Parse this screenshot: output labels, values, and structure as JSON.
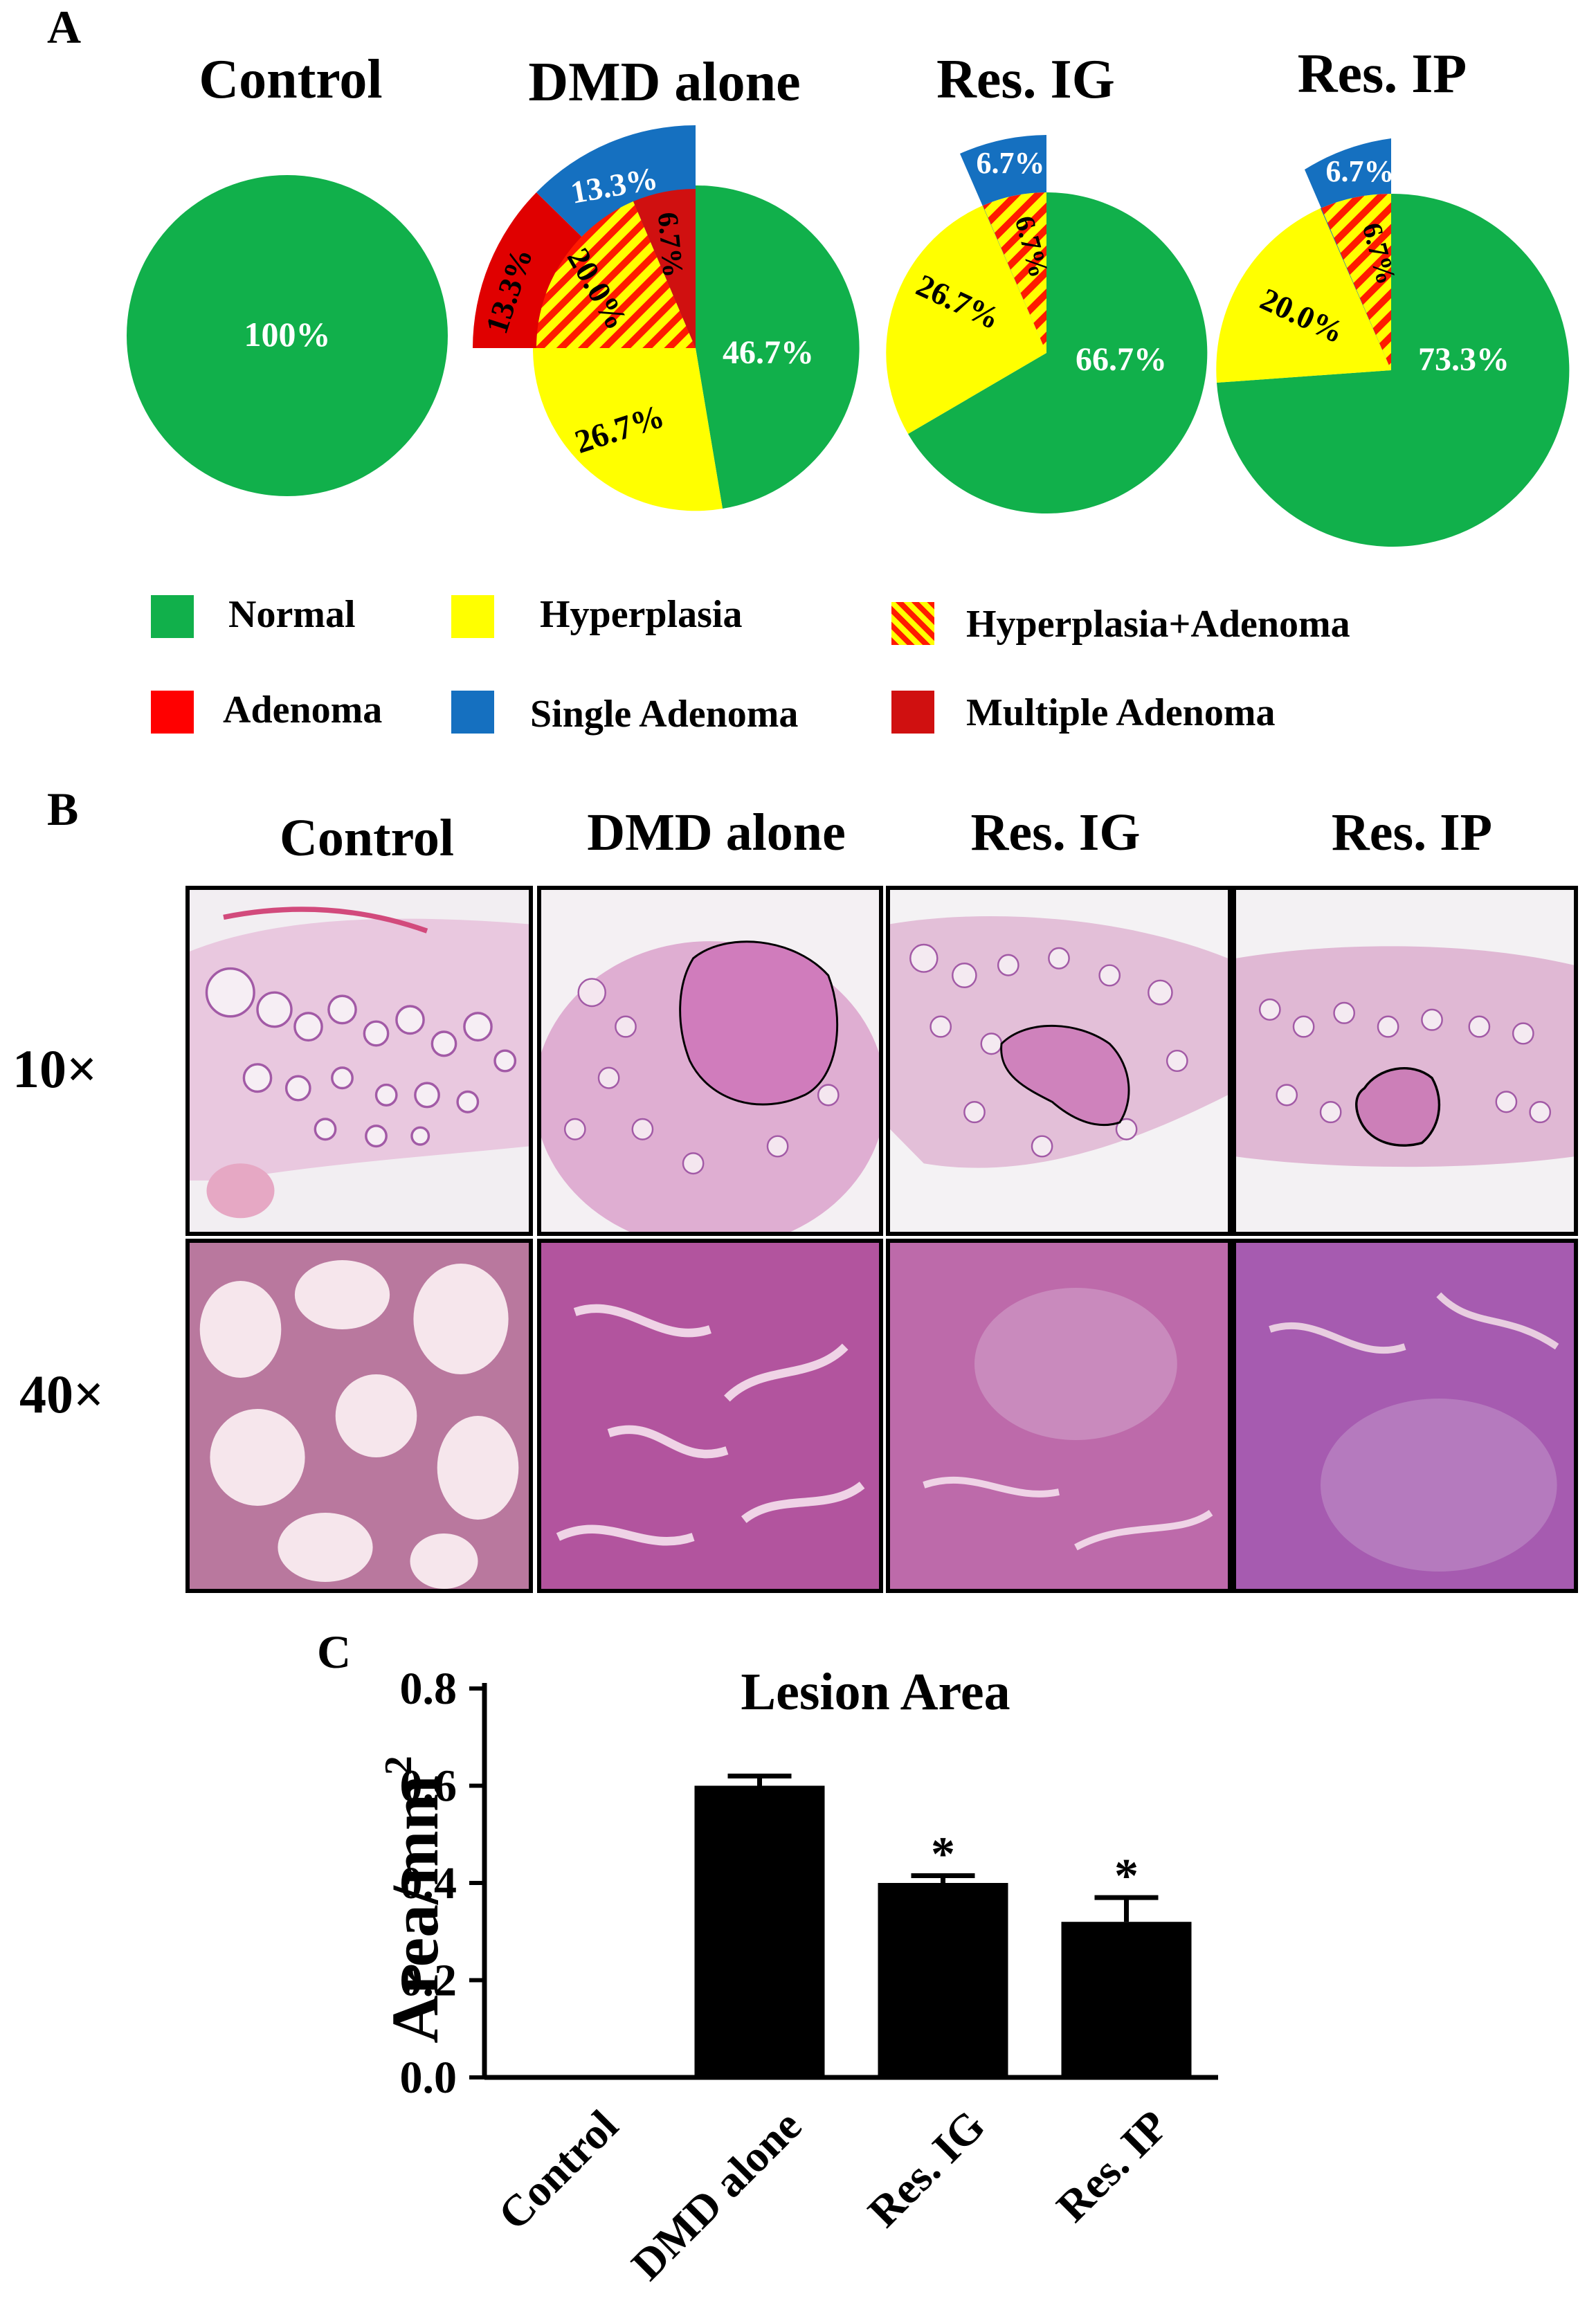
{
  "panel_a": {
    "letter": "A",
    "legend": [
      {
        "label": "Normal",
        "color": "#11b04b",
        "hatched": false
      },
      {
        "label": "Hyperplasia",
        "color": "#ffff00",
        "hatched": false
      },
      {
        "label": "Hyperplasia+Adenoma",
        "color": "#ffff00",
        "hatched": true
      },
      {
        "label": "Adenoma",
        "color": "#ff0000",
        "hatched": false
      },
      {
        "label": "Single Adenoma",
        "color": "#1570c0",
        "hatched": false
      },
      {
        "label": "Multiple Adenoma",
        "color": "#d01010",
        "hatched": false
      }
    ]
  },
  "panel_b": {
    "letter": "B",
    "columns": [
      "Control",
      "DMD alone",
      "Res. IG",
      "Res. IP"
    ],
    "rows": [
      "10×",
      "40×"
    ]
  },
  "panel_c": {
    "letter": "C"
  },
  "colors": {
    "normal": "#11b04b",
    "hyperplasia": "#ffff00",
    "adenoma": "#ff0000",
    "single_adenoma": "#1570c0",
    "multiple_adenoma": "#d01010",
    "tissue_pink": "#d98ab8",
    "tissue_purple": "#9b4fa0"
  },
  "chart_data": [
    {
      "type": "pie",
      "title": "Control",
      "slices": [
        {
          "label": "Normal",
          "value": 100,
          "text": "100%"
        }
      ]
    },
    {
      "type": "pie",
      "title": "DMD alone",
      "slices": [
        {
          "label": "Normal",
          "value": 46.7,
          "text": "46.7%"
        },
        {
          "label": "Hyperplasia",
          "value": 26.7,
          "text": "26.7%"
        },
        {
          "label": "Adenoma",
          "value": 13.3,
          "text": "13.3%"
        },
        {
          "label": "Single Adenoma",
          "value": 13.3,
          "text": "13.3%"
        },
        {
          "label": "Hyperplasia+Adenoma",
          "value": 20.0,
          "text": "20.0%"
        },
        {
          "label": "Multiple Adenoma",
          "value": 6.7,
          "text": "6.7%"
        }
      ]
    },
    {
      "type": "pie",
      "title": "Res. IG",
      "slices": [
        {
          "label": "Normal",
          "value": 66.7,
          "text": "66.7%"
        },
        {
          "label": "Hyperplasia",
          "value": 26.7,
          "text": "26.7%"
        },
        {
          "label": "Single Adenoma",
          "value": 6.7,
          "text": "6.7%"
        },
        {
          "label": "Hyperplasia+Adenoma",
          "value": 6.7,
          "text": "6.7%"
        }
      ]
    },
    {
      "type": "pie",
      "title": "Res. IP",
      "slices": [
        {
          "label": "Normal",
          "value": 73.3,
          "text": "73.3%"
        },
        {
          "label": "Hyperplasia",
          "value": 20.0,
          "text": "20.0%"
        },
        {
          "label": "Single Adenoma",
          "value": 6.7,
          "text": "6.7%"
        },
        {
          "label": "Hyperplasia+Adenoma",
          "value": 6.7,
          "text": "6.7%"
        }
      ]
    },
    {
      "type": "bar",
      "title": "Lesion Area",
      "ylabel": "Area/mm",
      "ylabel_sup": "2",
      "categories": [
        "Control",
        "DMD alone",
        "Res. IG",
        "Res. IP"
      ],
      "values": [
        0.0,
        0.6,
        0.4,
        0.32
      ],
      "errors": [
        0.0,
        0.02,
        0.015,
        0.05
      ],
      "significance": [
        "",
        "",
        "*",
        "*"
      ],
      "ylim": [
        0,
        0.8
      ],
      "yticks": [
        "0.0",
        "0.2",
        "0.4",
        "0.6",
        "0.8"
      ],
      "bar_color": "#000000"
    }
  ]
}
